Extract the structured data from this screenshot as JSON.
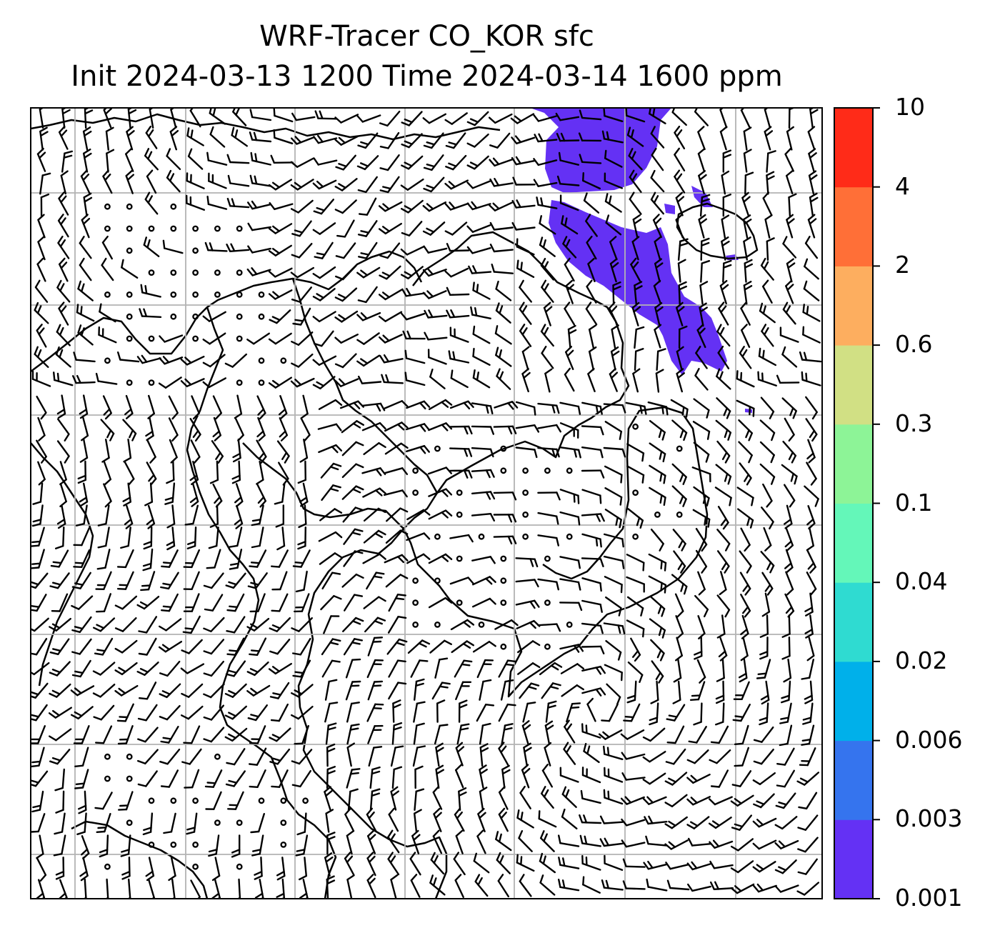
{
  "title": {
    "line1": "WRF-Tracer CO_KOR sfc",
    "line2": "Init 2024-03-13 1200 Time 2024-03-14 1600 ppm"
  },
  "colorbar": {
    "levels": [
      "0.001",
      "0.003",
      "0.006",
      "0.02",
      "0.04",
      "0.1",
      "0.3",
      "0.6",
      "2",
      "4",
      "10"
    ],
    "colors": [
      "#6431f4",
      "#3574ee",
      "#00b0ea",
      "#2fdbd1",
      "#64f7b9",
      "#8df497",
      "#d1e084",
      "#fdae5f",
      "#ff6f37",
      "#ff2b18"
    ]
  },
  "plume": {
    "level": "0.001-0.003",
    "color": "#6431f4"
  },
  "map": {
    "frame_color": "#000000",
    "grid_color": "#b3b3b3",
    "coast_color": "#000000",
    "barb_color": "#000000"
  }
}
